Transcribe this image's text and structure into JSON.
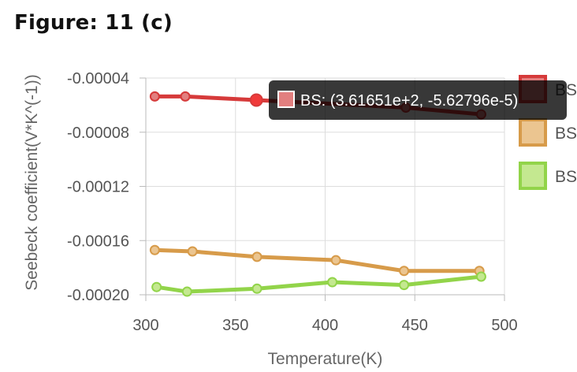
{
  "figure": {
    "title": "Figure: 11 (c)"
  },
  "chart_data": {
    "type": "line",
    "xlabel": "Temperature(K)",
    "ylabel": "Seebeck coefficient(V*K^(-1))",
    "xlim": [
      300,
      500
    ],
    "ylim": [
      -0.0002,
      -4e-05
    ],
    "xticks": [
      "300",
      "350",
      "400",
      "450",
      "500"
    ],
    "yticks": [
      "-0.00004",
      "-0.00008",
      "-0.00012",
      "-0.00016",
      "-0.00020"
    ],
    "grid": true,
    "legend_position": "right",
    "series": [
      {
        "name": "BS",
        "color": "#d63a3a",
        "fill": "#e27f7f",
        "x": [
          305,
          322,
          361.651,
          445,
          487
        ],
        "y": [
          -5.36e-05,
          -5.36e-05,
          -5.62796e-05,
          -6.18e-05,
          -6.68e-05
        ]
      },
      {
        "name": "BS",
        "color": "#d79b4a",
        "fill": "#ebc590",
        "x": [
          305,
          326,
          362,
          406,
          444,
          486
        ],
        "y": [
          -0.000167,
          -0.000168,
          -0.000172,
          -0.0001745,
          -0.0001824,
          -0.0001824
        ]
      },
      {
        "name": "BS",
        "color": "#92d44a",
        "fill": "#c4e890",
        "x": [
          306,
          323,
          362,
          404,
          444,
          487
        ],
        "y": [
          -0.0001943,
          -0.0001977,
          -0.0001955,
          -0.0001907,
          -0.0001928,
          -0.0001866
        ]
      }
    ],
    "tooltip": {
      "text": "BS: (3.61651e+2, -5.62796e-5)",
      "series_index": 0,
      "point_index": 2
    }
  }
}
